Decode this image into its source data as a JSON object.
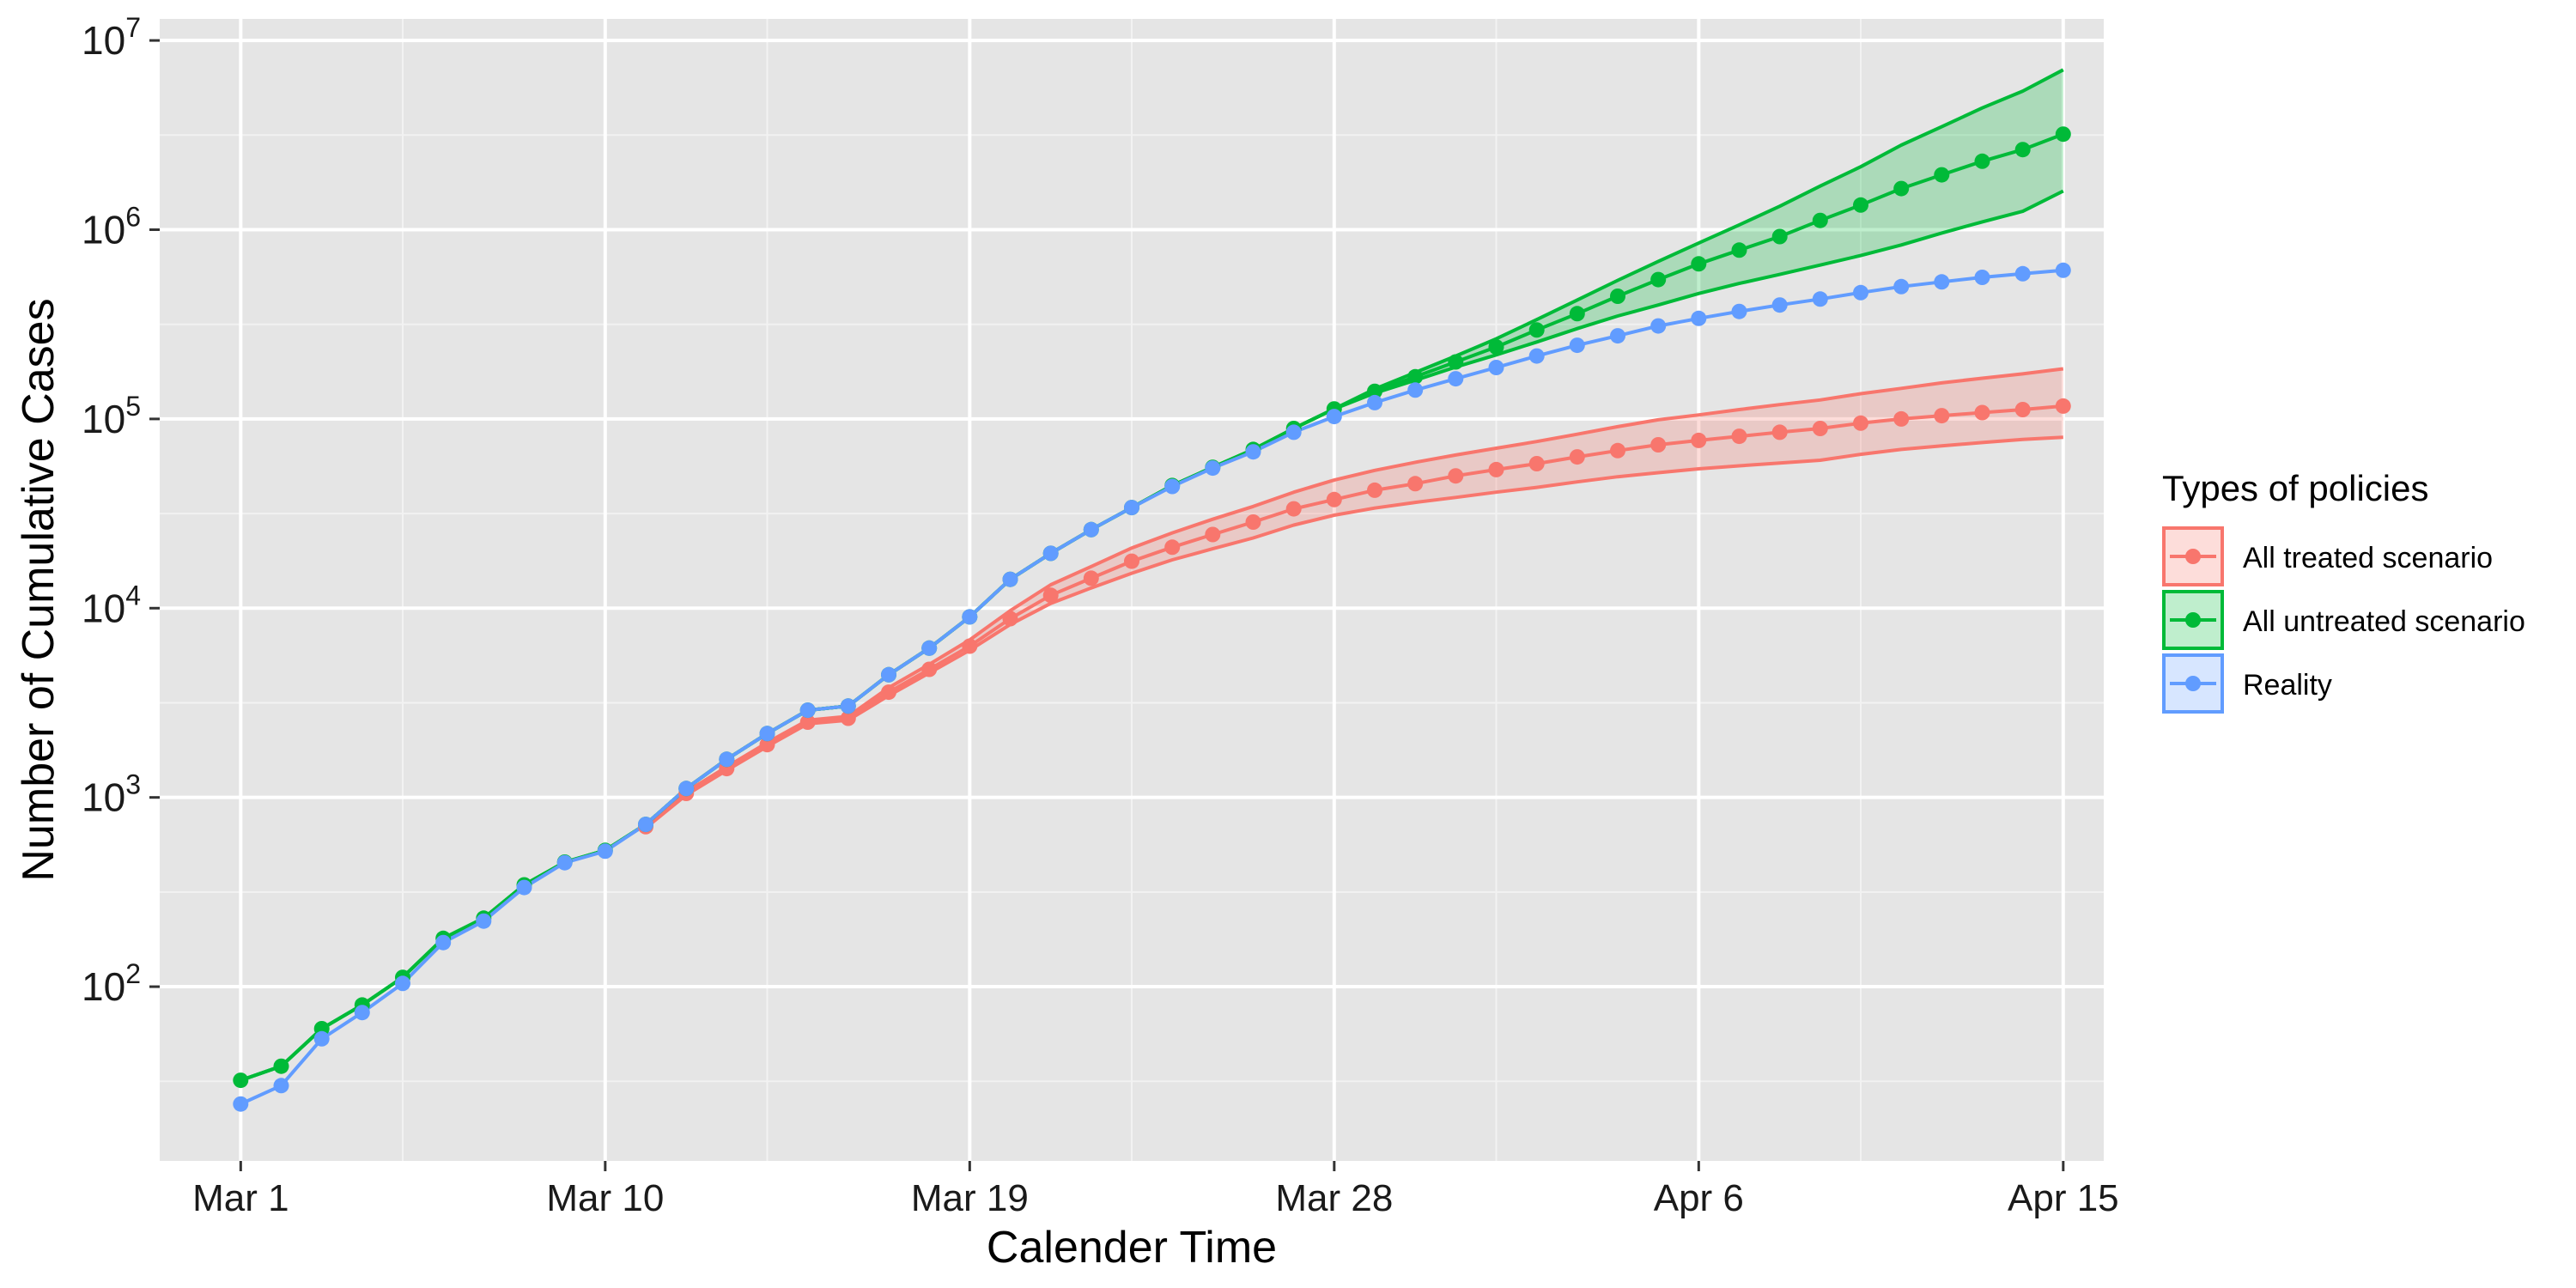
{
  "chart_data": {
    "type": "line",
    "xlabel": "Calender Time",
    "ylabel": "Number of Cumulative Cases",
    "x_scale": "date",
    "y_scale": "log10",
    "xlim": [
      "2020-02-28",
      "2020-04-16"
    ],
    "ylim": [
      12,
      13000000
    ],
    "x_ticks": [
      {
        "date": "2020-03-01",
        "label": "Mar 1"
      },
      {
        "date": "2020-03-10",
        "label": "Mar 10"
      },
      {
        "date": "2020-03-19",
        "label": "Mar 19"
      },
      {
        "date": "2020-03-28",
        "label": "Mar 28"
      },
      {
        "date": "2020-04-06",
        "label": "Apr 6"
      },
      {
        "date": "2020-04-15",
        "label": "Apr 15"
      }
    ],
    "y_ticks": [
      {
        "value": 100,
        "base": "10",
        "exp": "2"
      },
      {
        "value": 1000,
        "base": "10",
        "exp": "3"
      },
      {
        "value": 10000,
        "base": "10",
        "exp": "4"
      },
      {
        "value": 100000,
        "base": "10",
        "exp": "5"
      },
      {
        "value": 1000000,
        "base": "10",
        "exp": "6"
      },
      {
        "value": 10000000,
        "base": "10",
        "exp": "7"
      }
    ],
    "grid": true,
    "background": "#E5E5E5",
    "legend": {
      "title": "Types of policies",
      "position": "right"
    },
    "series": [
      {
        "name": "All treated scenario",
        "color": "#F8766D",
        "x": [
          "2020-03-11",
          "2020-03-12",
          "2020-03-13",
          "2020-03-14",
          "2020-03-15",
          "2020-03-16",
          "2020-03-17",
          "2020-03-18",
          "2020-03-19",
          "2020-03-20",
          "2020-03-21",
          "2020-03-22",
          "2020-03-23",
          "2020-03-24",
          "2020-03-25",
          "2020-03-26",
          "2020-03-27",
          "2020-03-28",
          "2020-03-29",
          "2020-03-30",
          "2020-03-31",
          "2020-04-01",
          "2020-04-02",
          "2020-04-03",
          "2020-04-04",
          "2020-04-05",
          "2020-04-06",
          "2020-04-07",
          "2020-04-08",
          "2020-04-09",
          "2020-04-10",
          "2020-04-11",
          "2020-04-12",
          "2020-04-13",
          "2020-04-14",
          "2020-04-15"
        ],
        "values": [
          700,
          1050,
          1420,
          1900,
          2500,
          2620,
          3600,
          4750,
          6300,
          8800,
          11700,
          14400,
          17700,
          21000,
          24500,
          28500,
          33500,
          37500,
          42000,
          45500,
          50000,
          54000,
          58000,
          63000,
          68000,
          73000,
          77000,
          81000,
          85000,
          89000,
          95000,
          100000,
          104000,
          108000,
          112000,
          117000
        ],
        "lower": [
          690,
          1030,
          1390,
          1860,
          2450,
          2560,
          3450,
          4550,
          6000,
          8200,
          10600,
          12800,
          15300,
          18000,
          20600,
          23500,
          27500,
          31000,
          33800,
          36200,
          38500,
          41000,
          43500,
          46500,
          49500,
          52000,
          54500,
          56500,
          58500,
          60500,
          65000,
          69000,
          72000,
          75000,
          78000,
          80000
        ],
        "upper": [
          710,
          1070,
          1450,
          1950,
          2560,
          2680,
          3800,
          5050,
          6800,
          9700,
          13300,
          16600,
          20800,
          25000,
          29500,
          34500,
          41000,
          47500,
          53500,
          59000,
          64500,
          70000,
          76000,
          83000,
          91000,
          99000,
          105000,
          112000,
          119000,
          126000,
          136000,
          145000,
          155000,
          164000,
          173000,
          184000
        ]
      },
      {
        "name": "All untreated scenario",
        "color": "#00BA38",
        "x": [
          "2020-03-01",
          "2020-03-02",
          "2020-03-03",
          "2020-03-04",
          "2020-03-05",
          "2020-03-06",
          "2020-03-07",
          "2020-03-08",
          "2020-03-09",
          "2020-03-10",
          "2020-03-11",
          "2020-03-12",
          "2020-03-13",
          "2020-03-14",
          "2020-03-15",
          "2020-03-16",
          "2020-03-17",
          "2020-03-18",
          "2020-03-19",
          "2020-03-20",
          "2020-03-21",
          "2020-03-22",
          "2020-03-23",
          "2020-03-24",
          "2020-03-25",
          "2020-03-26",
          "2020-03-27",
          "2020-03-28",
          "2020-03-29",
          "2020-03-30",
          "2020-03-31",
          "2020-04-01",
          "2020-04-02",
          "2020-04-03",
          "2020-04-04",
          "2020-04-05",
          "2020-04-06",
          "2020-04-07",
          "2020-04-08",
          "2020-04-09",
          "2020-04-10",
          "2020-04-11",
          "2020-04-12",
          "2020-04-13",
          "2020-04-14",
          "2020-04-15"
        ],
        "values": [
          32,
          38,
          60,
          80,
          112,
          180,
          230,
          345,
          455,
          525,
          720,
          1115,
          1590,
          2175,
          2890,
          3040,
          4450,
          6150,
          9000,
          14200,
          19500,
          26000,
          34000,
          44500,
          55500,
          69000,
          89000,
          113000,
          140000,
          167000,
          200000,
          240000,
          295000,
          360000,
          445000,
          545000,
          660000,
          780000,
          920000,
          1120000,
          1350000,
          1650000,
          1950000,
          2300000,
          2650000,
          3200000
        ],
        "lower": [
          32,
          38,
          60,
          80,
          112,
          180,
          230,
          345,
          455,
          525,
          720,
          1115,
          1590,
          2175,
          2890,
          3040,
          4450,
          6150,
          9000,
          14200,
          19500,
          26000,
          34000,
          44500,
          55500,
          69000,
          89000,
          113000,
          137000,
          160000,
          188000,
          218000,
          255000,
          300000,
          350000,
          400000,
          460000,
          520000,
          580000,
          650000,
          730000,
          830000,
          960000,
          1100000,
          1250000,
          1600000
        ],
        "upper": [
          32,
          38,
          60,
          80,
          112,
          180,
          230,
          345,
          455,
          525,
          720,
          1115,
          1590,
          2175,
          2890,
          3040,
          4450,
          6150,
          9000,
          14200,
          19500,
          26000,
          34000,
          44500,
          55500,
          69000,
          89000,
          113000,
          144000,
          176000,
          215000,
          265000,
          335000,
          425000,
          540000,
          680000,
          850000,
          1060000,
          1330000,
          1700000,
          2150000,
          2800000,
          3500000,
          4400000,
          5400000,
          7000000
        ]
      },
      {
        "name": "Reality",
        "color": "#619CFF",
        "x": [
          "2020-03-01",
          "2020-03-02",
          "2020-03-03",
          "2020-03-04",
          "2020-03-05",
          "2020-03-06",
          "2020-03-07",
          "2020-03-08",
          "2020-03-09",
          "2020-03-10",
          "2020-03-11",
          "2020-03-12",
          "2020-03-13",
          "2020-03-14",
          "2020-03-15",
          "2020-03-16",
          "2020-03-17",
          "2020-03-18",
          "2020-03-19",
          "2020-03-20",
          "2020-03-21",
          "2020-03-22",
          "2020-03-23",
          "2020-03-24",
          "2020-03-25",
          "2020-03-26",
          "2020-03-27",
          "2020-03-28",
          "2020-03-29",
          "2020-03-30",
          "2020-03-31",
          "2020-04-01",
          "2020-04-02",
          "2020-04-03",
          "2020-04-04",
          "2020-04-05",
          "2020-04-06",
          "2020-04-07",
          "2020-04-08",
          "2020-04-09",
          "2020-04-10",
          "2020-04-11",
          "2020-04-12",
          "2020-04-13",
          "2020-04-14",
          "2020-04-15"
        ],
        "values": [
          24,
          30,
          53,
          73,
          104,
          171,
          222,
          334,
          452,
          520,
          720,
          1115,
          1590,
          2175,
          2890,
          3040,
          4450,
          6150,
          9000,
          14200,
          19500,
          26000,
          34000,
          44000,
          55000,
          67000,
          85000,
          103000,
          122000,
          142000,
          163000,
          187000,
          215000,
          245000,
          275000,
          310000,
          340000,
          370000,
          400000,
          430000,
          465000,
          500000,
          530000,
          560000,
          585000,
          610000
        ]
      }
    ]
  }
}
